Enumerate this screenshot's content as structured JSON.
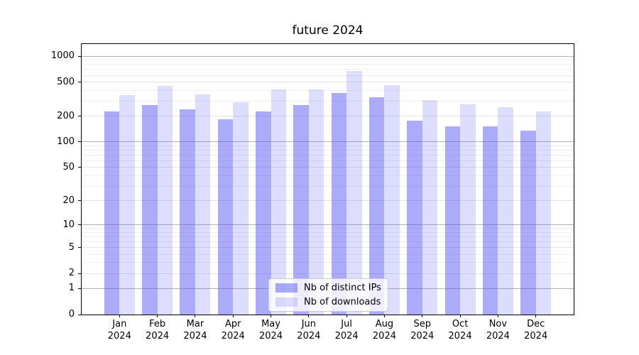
{
  "chart_data": {
    "type": "bar",
    "title": "future 2024",
    "categories": [
      "Jan",
      "Feb",
      "Mar",
      "Apr",
      "May",
      "Jun",
      "Jul",
      "Aug",
      "Sep",
      "Oct",
      "Nov",
      "Dec"
    ],
    "year_label": "2024",
    "series": [
      {
        "name": "Nb of distinct IPs",
        "color": "rgba(76,76,242,0.47)",
        "values": [
          229,
          272,
          241,
          184,
          229,
          271,
          374,
          334,
          179,
          153,
          151,
          136
        ]
      },
      {
        "name": "Nb of downloads",
        "color": "rgba(76,76,242,0.19)",
        "values": [
          351,
          450,
          360,
          290,
          414,
          410,
          671,
          459,
          308,
          273,
          256,
          228
        ]
      }
    ],
    "yscale": "log1p",
    "yticks": [
      0,
      1,
      2,
      5,
      10,
      20,
      50,
      100,
      200,
      500,
      1000
    ],
    "major_grid_ticks": [
      1,
      10,
      100,
      1000
    ],
    "minor_grid_multiples": [
      3,
      4,
      6,
      7,
      8,
      9
    ],
    "ylim": [
      0,
      1385
    ],
    "grid": true,
    "legend_position": "lower center",
    "colors": {
      "grid_major": "#b3b3b3",
      "grid_light": "#e4e4e4",
      "grid_minor": "#f0f0f0",
      "axis": "#000000"
    }
  }
}
